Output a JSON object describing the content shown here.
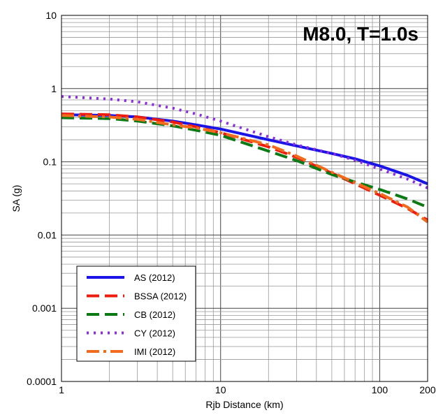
{
  "chart_data": {
    "type": "line",
    "title": "M8.0, T=1.0s",
    "xlabel": "Rjb Distance (km)",
    "ylabel": "SA (g)",
    "x_scale": "log",
    "y_scale": "log",
    "xlim": [
      1,
      200
    ],
    "ylim": [
      0.0001,
      10
    ],
    "x_ticks": [
      1,
      10,
      100,
      200
    ],
    "x_tick_labels": [
      "1",
      "10",
      "100",
      "200"
    ],
    "y_ticks": [
      0.0001,
      0.001,
      0.01,
      0.1,
      1,
      10
    ],
    "y_tick_labels": [
      "0.0001",
      "0.001",
      "0.01",
      "0.1",
      "1",
      "10"
    ],
    "grid": true,
    "legend_position": "bottom-left",
    "x": [
      1,
      2,
      3,
      5,
      7,
      10,
      20,
      30,
      50,
      70,
      100,
      150,
      200
    ],
    "series": [
      {
        "name": "AS (2012)",
        "color": "#1a14e6",
        "dash": "solid",
        "values": [
          0.44,
          0.43,
          0.41,
          0.36,
          0.32,
          0.28,
          0.2,
          0.165,
          0.13,
          0.11,
          0.088,
          0.065,
          0.05
        ]
      },
      {
        "name": "BSSA (2012)",
        "color": "#ee1c0e",
        "dash": "dashed",
        "values": [
          0.45,
          0.44,
          0.41,
          0.35,
          0.3,
          0.25,
          0.16,
          0.115,
          0.07,
          0.05,
          0.035,
          0.023,
          0.016
        ]
      },
      {
        "name": "CB (2012)",
        "color": "#0b7a14",
        "dash": "dashed",
        "values": [
          0.4,
          0.39,
          0.36,
          0.31,
          0.27,
          0.23,
          0.14,
          0.104,
          0.067,
          0.053,
          0.042,
          0.031,
          0.024
        ]
      },
      {
        "name": "CY (2012)",
        "color": "#8b2be2",
        "dash": "dotted",
        "values": [
          0.78,
          0.72,
          0.66,
          0.54,
          0.45,
          0.36,
          0.22,
          0.17,
          0.13,
          0.105,
          0.08,
          0.058,
          0.044
        ]
      },
      {
        "name": "IMI (2012)",
        "color": "#f26b1d",
        "dash": "dashdot",
        "values": [
          0.43,
          0.41,
          0.38,
          0.32,
          0.29,
          0.25,
          0.17,
          0.12,
          0.072,
          0.052,
          0.037,
          0.024,
          0.015
        ]
      }
    ]
  }
}
